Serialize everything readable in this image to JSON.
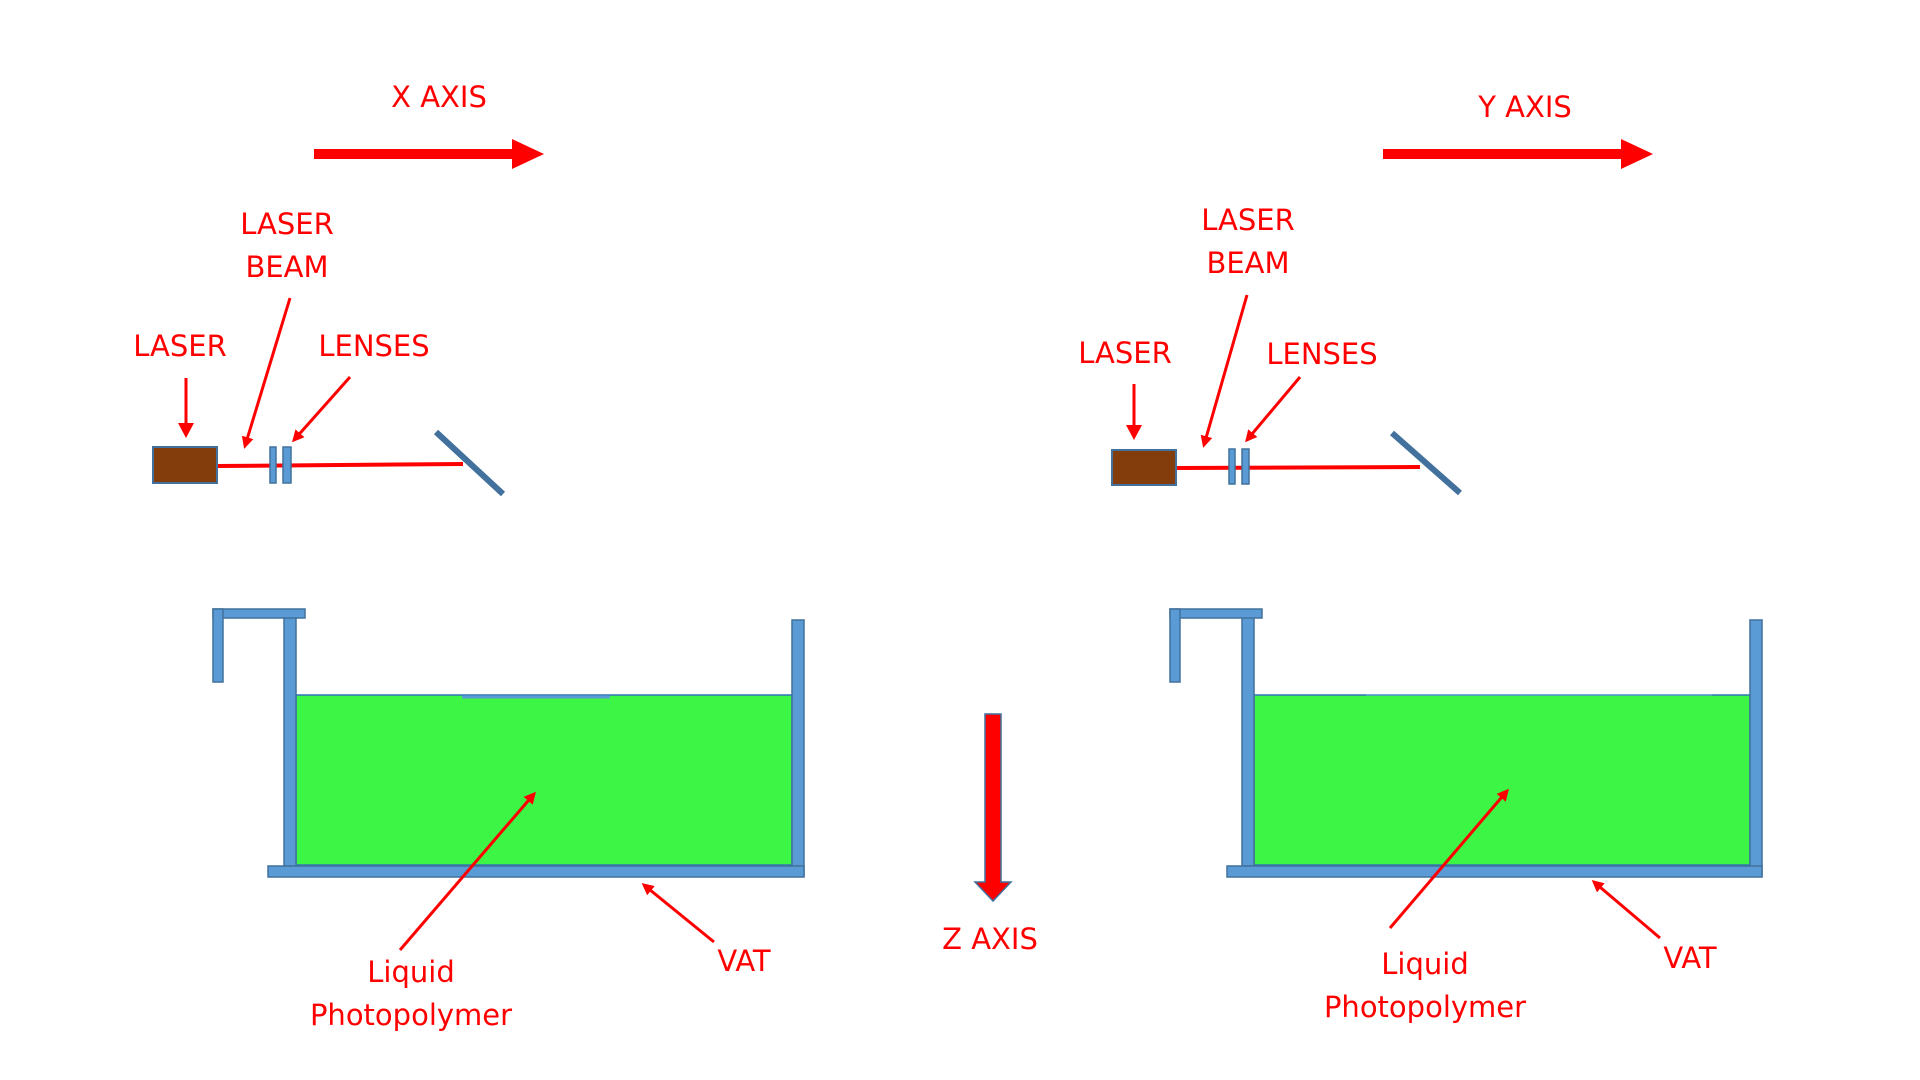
{
  "colors": {
    "label": "#ff0000",
    "arrow": "#ff0000",
    "beam": "#ff0000",
    "laser_body": "#833c0b",
    "laser_outline": "#41719c",
    "steel": "#5b9bd5",
    "steel_outline": "#41719c",
    "liquid": "#3cf544",
    "liquid_outline": "#2e75b6"
  },
  "icons": {
    "laser": "laser-emitter-icon",
    "lens": "lens-icon",
    "mirror": "mirror-icon"
  },
  "axes": {
    "x_label": "X AXIS",
    "y_label": "Y AXIS",
    "z_label": "Z AXIS"
  },
  "left_setup": {
    "laser_label": "LASER",
    "beam_label_line1": "LASER",
    "beam_label_line2": "BEAM",
    "lenses_label": "LENSES",
    "liquid_label_line1": "Liquid",
    "liquid_label_line2": "Photopolymer",
    "vat_label": "VAT"
  },
  "right_setup": {
    "laser_label": "LASER",
    "beam_label_line1": "LASER",
    "beam_label_line2": "BEAM",
    "lenses_label": "LENSES",
    "liquid_label_line1": "Liquid",
    "liquid_label_line2": "Photopolymer",
    "vat_label": "VAT"
  }
}
